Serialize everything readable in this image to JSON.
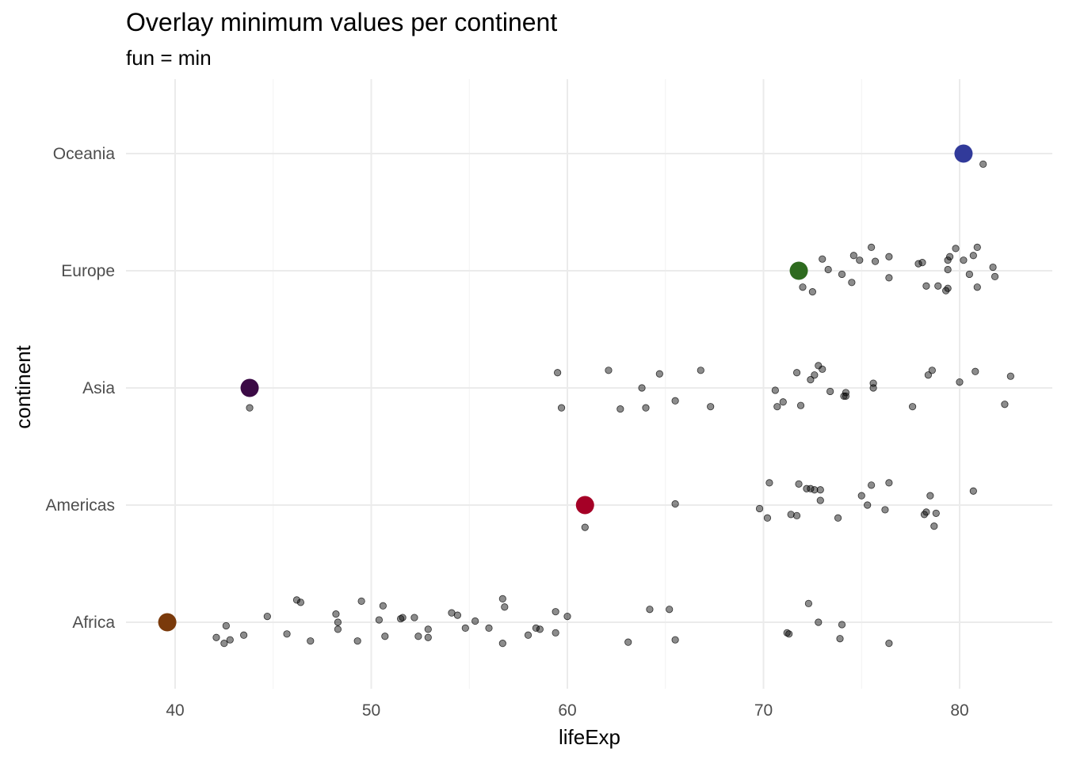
{
  "chart_data": {
    "type": "scatter",
    "title": "Overlay minimum values per continent",
    "subtitle": "fun = min",
    "xlabel": "lifeExp",
    "ylabel": "continent",
    "xlim": [
      37.5,
      84.9
    ],
    "xticks": [
      40,
      50,
      60,
      70,
      80
    ],
    "categories": [
      "Africa",
      "Americas",
      "Asia",
      "Europe",
      "Oceania"
    ],
    "grid": true,
    "legend": "none",
    "point_style": {
      "color": "#000000",
      "opacity": 0.45
    },
    "summary": {
      "name": "min",
      "values": [
        39.6,
        60.9,
        43.8,
        71.8,
        80.2
      ],
      "colors": [
        "#7a3a0b",
        "#a50026",
        "#3b0a45",
        "#2e6b1f",
        "#313a9a"
      ]
    },
    "points": {
      "Africa": [
        [
          39.6,
          -0.01
        ],
        [
          42.1,
          -0.13
        ],
        [
          42.5,
          -0.18
        ],
        [
          42.6,
          -0.03
        ],
        [
          42.8,
          -0.15
        ],
        [
          43.5,
          -0.11
        ],
        [
          44.7,
          0.05
        ],
        [
          45.7,
          -0.1
        ],
        [
          46.2,
          0.19
        ],
        [
          46.4,
          0.17
        ],
        [
          46.9,
          -0.16
        ],
        [
          48.2,
          0.07
        ],
        [
          48.3,
          0.0
        ],
        [
          48.3,
          -0.06
        ],
        [
          49.3,
          -0.16
        ],
        [
          49.5,
          0.18
        ],
        [
          50.4,
          0.02
        ],
        [
          50.6,
          0.14
        ],
        [
          50.7,
          -0.12
        ],
        [
          51.5,
          0.03
        ],
        [
          51.6,
          0.04
        ],
        [
          52.2,
          0.04
        ],
        [
          52.4,
          -0.12
        ],
        [
          52.9,
          -0.06
        ],
        [
          52.9,
          -0.13
        ],
        [
          54.1,
          0.08
        ],
        [
          54.4,
          0.06
        ],
        [
          54.8,
          -0.05
        ],
        [
          55.3,
          0.01
        ],
        [
          56.0,
          -0.05
        ],
        [
          56.7,
          0.2
        ],
        [
          56.7,
          -0.18
        ],
        [
          56.8,
          0.13
        ],
        [
          58.0,
          -0.11
        ],
        [
          58.4,
          -0.05
        ],
        [
          58.6,
          -0.06
        ],
        [
          59.4,
          0.09
        ],
        [
          59.4,
          -0.09
        ],
        [
          60.0,
          0.05
        ],
        [
          63.1,
          -0.17
        ],
        [
          64.2,
          0.11
        ],
        [
          65.2,
          0.11
        ],
        [
          65.5,
          -0.15
        ],
        [
          71.2,
          -0.09
        ],
        [
          71.3,
          -0.1
        ],
        [
          72.3,
          0.16
        ],
        [
          72.8,
          0.0
        ],
        [
          73.9,
          -0.14
        ],
        [
          74.0,
          -0.02
        ],
        [
          76.4,
          -0.18
        ]
      ],
      "Americas": [
        [
          60.9,
          -0.19
        ],
        [
          65.5,
          0.01
        ],
        [
          69.8,
          -0.03
        ],
        [
          70.2,
          -0.11
        ],
        [
          70.3,
          0.19
        ],
        [
          71.4,
          -0.08
        ],
        [
          71.7,
          -0.09
        ],
        [
          71.8,
          0.18
        ],
        [
          72.2,
          0.14
        ],
        [
          72.4,
          0.14
        ],
        [
          72.6,
          0.13
        ],
        [
          72.9,
          0.13
        ],
        [
          72.9,
          0.04
        ],
        [
          73.8,
          -0.11
        ],
        [
          75.0,
          0.08
        ],
        [
          75.3,
          0.0
        ],
        [
          75.5,
          0.17
        ],
        [
          76.2,
          -0.04
        ],
        [
          76.4,
          0.19
        ],
        [
          78.2,
          -0.08
        ],
        [
          78.3,
          -0.06
        ],
        [
          78.5,
          0.08
        ],
        [
          78.7,
          -0.18
        ],
        [
          78.8,
          -0.07
        ],
        [
          80.7,
          0.12
        ]
      ],
      "Asia": [
        [
          43.8,
          -0.17
        ],
        [
          59.5,
          0.13
        ],
        [
          59.7,
          -0.17
        ],
        [
          62.1,
          0.15
        ],
        [
          62.7,
          -0.18
        ],
        [
          63.8,
          0.0
        ],
        [
          64.0,
          -0.17
        ],
        [
          64.7,
          0.12
        ],
        [
          65.5,
          -0.11
        ],
        [
          66.8,
          0.15
        ],
        [
          67.3,
          -0.16
        ],
        [
          70.6,
          -0.02
        ],
        [
          70.7,
          -0.16
        ],
        [
          71.0,
          -0.12
        ],
        [
          71.7,
          0.13
        ],
        [
          71.9,
          -0.15
        ],
        [
          72.4,
          0.07
        ],
        [
          72.6,
          0.11
        ],
        [
          72.8,
          0.19
        ],
        [
          73.0,
          0.16
        ],
        [
          73.4,
          -0.03
        ],
        [
          74.1,
          -0.07
        ],
        [
          74.2,
          -0.07
        ],
        [
          74.2,
          -0.04
        ],
        [
          75.6,
          0.0
        ],
        [
          75.6,
          0.04
        ],
        [
          77.6,
          -0.16
        ],
        [
          78.4,
          0.11
        ],
        [
          78.6,
          0.15
        ],
        [
          80.0,
          0.05
        ],
        [
          80.8,
          0.14
        ],
        [
          82.3,
          -0.14
        ],
        [
          82.6,
          0.1
        ]
      ],
      "Europe": [
        [
          71.8,
          0.0
        ],
        [
          72.0,
          -0.14
        ],
        [
          72.5,
          -0.18
        ],
        [
          73.0,
          0.1
        ],
        [
          73.3,
          0.01
        ],
        [
          74.0,
          -0.03
        ],
        [
          74.5,
          -0.1
        ],
        [
          74.6,
          0.13
        ],
        [
          74.9,
          0.09
        ],
        [
          75.5,
          0.2
        ],
        [
          75.7,
          0.08
        ],
        [
          76.4,
          -0.06
        ],
        [
          76.4,
          0.12
        ],
        [
          77.9,
          0.06
        ],
        [
          78.1,
          0.07
        ],
        [
          78.3,
          -0.13
        ],
        [
          78.9,
          -0.13
        ],
        [
          79.3,
          -0.17
        ],
        [
          79.4,
          -0.15
        ],
        [
          79.4,
          0.01
        ],
        [
          79.4,
          0.09
        ],
        [
          79.5,
          0.12
        ],
        [
          79.8,
          0.19
        ],
        [
          80.2,
          0.09
        ],
        [
          80.5,
          -0.03
        ],
        [
          80.7,
          0.13
        ],
        [
          80.9,
          -0.14
        ],
        [
          80.9,
          0.2
        ],
        [
          81.7,
          0.03
        ],
        [
          81.8,
          -0.05
        ]
      ],
      "Oceania": [
        [
          80.2,
          0.0
        ],
        [
          81.2,
          -0.09
        ]
      ]
    }
  }
}
